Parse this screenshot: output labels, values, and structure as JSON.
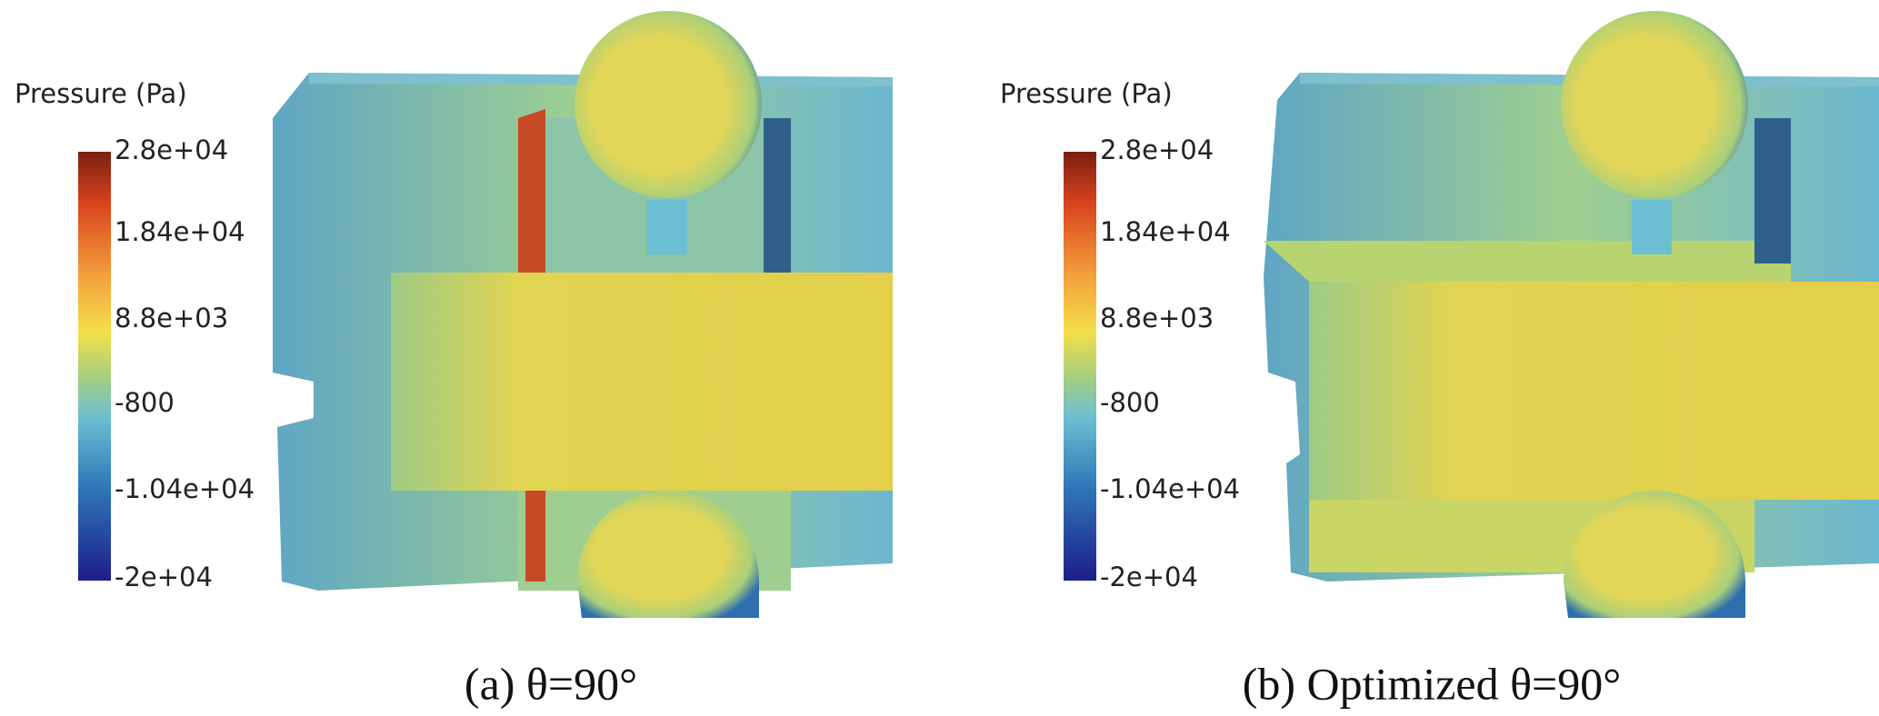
{
  "panels": [
    {
      "colorbar": {
        "title": "Pressure (Pa)",
        "labels": [
          "2.8e+04",
          "1.84e+04",
          "8.8e+03",
          "-800",
          "-1.04e+04",
          "-2e+04"
        ]
      },
      "caption": "(a) θ=90°"
    },
    {
      "colorbar": {
        "title": "Pressure (Pa)",
        "labels": [
          "2.8e+04",
          "1.84e+04",
          "8.8e+03",
          "-800",
          "-1.04e+04",
          "-2e+04"
        ]
      },
      "caption": "(b) Optimized θ=90°"
    }
  ]
}
